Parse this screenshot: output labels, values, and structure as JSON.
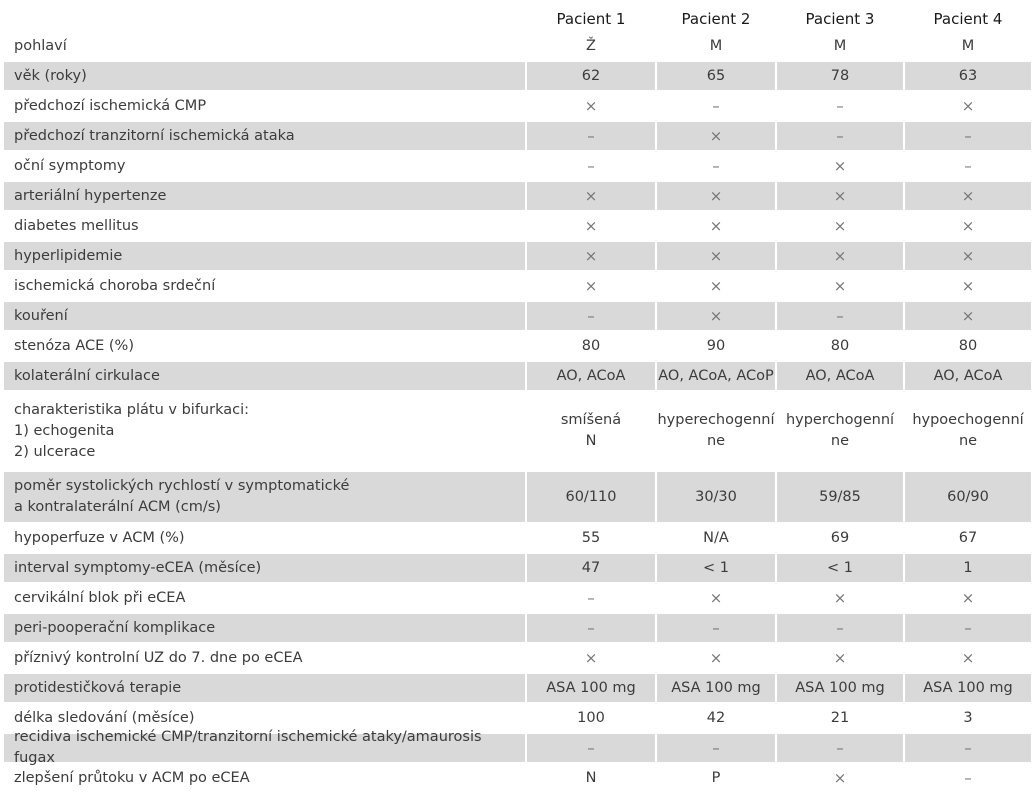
{
  "headers": [
    "",
    "Pacient 1",
    "Pacient 2",
    "Pacient 3",
    "Pacient 4"
  ],
  "rows": [
    {
      "label": "pohlaví",
      "values": [
        "Ž",
        "M",
        "M",
        "M"
      ]
    },
    {
      "label": "věk (roky)",
      "values": [
        "62",
        "65",
        "78",
        "63"
      ]
    },
    {
      "label": "předchozí ischemická CMP",
      "values": [
        "×",
        "–",
        "–",
        "×"
      ]
    },
    {
      "label": "předchozí tranzitorní ischemická ataka",
      "values": [
        "–",
        "×",
        "–",
        "–"
      ]
    },
    {
      "label": "oční symptomy",
      "values": [
        "–",
        "–",
        "×",
        "–"
      ]
    },
    {
      "label": "arteriální hypertenze",
      "values": [
        "×",
        "×",
        "×",
        "×"
      ]
    },
    {
      "label": "diabetes mellitus",
      "values": [
        "×",
        "×",
        "×",
        "×"
      ]
    },
    {
      "label": "hyperlipidemie",
      "values": [
        "×",
        "×",
        "×",
        "×"
      ]
    },
    {
      "label": "ischemická choroba srdeční",
      "values": [
        "×",
        "×",
        "×",
        "×"
      ]
    },
    {
      "label": "kouření",
      "values": [
        "–",
        "×",
        "–",
        "×"
      ]
    },
    {
      "label": "stenóza ACE (%)",
      "values": [
        "80",
        "90",
        "80",
        "80"
      ]
    },
    {
      "label": "kolaterální cirkulace",
      "values": [
        "AO, ACoA",
        "AO, ACoA, ACoP",
        "AO, ACoA",
        "AO, ACoA"
      ]
    },
    {
      "label": "charakteristika plátu v bifurkaci:\n1) echogenita\n2) ulcerace",
      "values": [
        "smíšená\nN",
        "hyperechogenní\nne",
        "hyperchogenní\nne",
        "hypoechogenní\nne"
      ]
    },
    {
      "label": "poměr systolických rychlostí v symptomatické\na kontralaterální ACM (cm/s)",
      "values": [
        "60/110",
        "30/30",
        "59/85",
        "60/90"
      ]
    },
    {
      "label": "hypoperfuze v ACM (%)",
      "values": [
        "55",
        "N/A",
        "69",
        "67"
      ]
    },
    {
      "label": "interval symptomy-eCEA (měsíce)",
      "values": [
        "47",
        "< 1",
        "< 1",
        "1"
      ]
    },
    {
      "label": "cervikální blok při eCEA",
      "values": [
        "–",
        "×",
        "×",
        "×"
      ]
    },
    {
      "label": "peri-pooperační komplikace",
      "values": [
        "–",
        "–",
        "–",
        "–"
      ]
    },
    {
      "label": "příznivý kontrolní UZ do 7. dne po eCEA",
      "values": [
        "×",
        "×",
        "×",
        "×"
      ]
    },
    {
      "label": "protidestičková terapie",
      "values": [
        "ASA 100 mg",
        "ASA 100 mg",
        "ASA 100 mg",
        "ASA 100 mg"
      ]
    },
    {
      "label": "délka sledování (měsíce)",
      "values": [
        "100",
        "42",
        "21",
        "3"
      ]
    },
    {
      "label": "recidiva ischemické CMP/tranzitorní ischemické ataky/amaurosis fugax",
      "values": [
        "–",
        "–",
        "–",
        "–"
      ]
    },
    {
      "label": "zlepšení průtoku v ACM po eCEA",
      "values": [
        "N",
        "P",
        "×",
        "–"
      ]
    }
  ]
}
